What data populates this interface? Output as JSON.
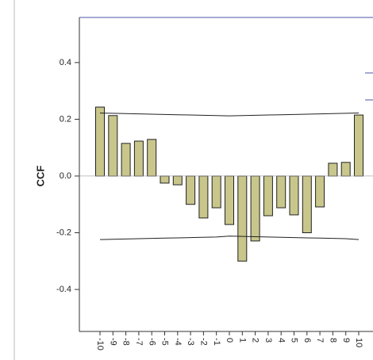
{
  "chart_data": {
    "type": "bar",
    "y_label": "CCF",
    "categories": [
      "-10",
      "-9",
      "-8",
      "-7",
      "-6",
      "-5",
      "-4",
      "-3",
      "-2",
      "-1",
      "0",
      "1",
      "2",
      "3",
      "4",
      "5",
      "6",
      "7",
      "8",
      "9",
      "10"
    ],
    "values": [
      0.243,
      0.213,
      0.115,
      0.123,
      0.129,
      -0.025,
      -0.031,
      -0.1,
      -0.148,
      -0.112,
      -0.171,
      -0.3,
      -0.229,
      -0.14,
      -0.112,
      -0.137,
      -0.2,
      -0.109,
      0.045,
      0.048,
      0.215
    ],
    "color": "#c9c68c",
    "confidence_limits": {
      "upper": [
        0.222,
        0.221,
        0.22,
        0.219,
        0.218,
        0.217,
        0.216,
        0.215,
        0.214,
        0.213,
        0.212,
        0.213,
        0.214,
        0.215,
        0.216,
        0.217,
        0.218,
        0.219,
        0.22,
        0.221,
        0.222
      ],
      "lower": [
        -0.224,
        -0.223,
        -0.222,
        -0.221,
        -0.22,
        -0.219,
        -0.218,
        -0.217,
        -0.216,
        -0.215,
        -0.212,
        -0.213,
        -0.214,
        -0.215,
        -0.216,
        -0.217,
        -0.218,
        -0.219,
        -0.22,
        -0.221,
        -0.224
      ]
    },
    "ylim": [
      -0.548,
      0.559
    ],
    "yticks": [
      -0.4,
      -0.2,
      {
        "value": 0,
        "label": "0.0"
      },
      0.2,
      0.4
    ]
  }
}
